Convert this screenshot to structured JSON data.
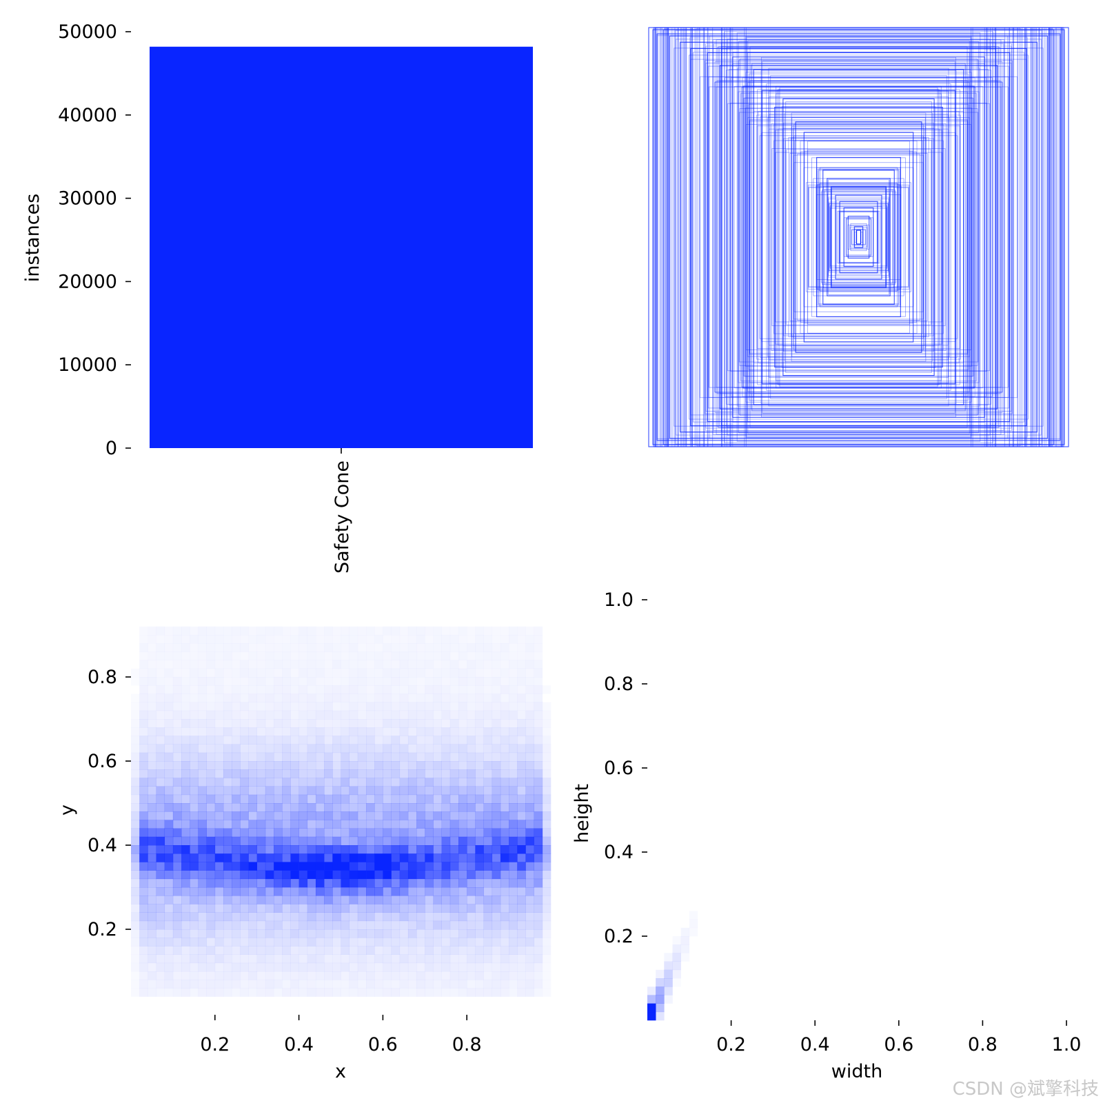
{
  "chart_data": [
    {
      "id": "instances",
      "type": "bar",
      "categories": [
        "Safety Cone"
      ],
      "values": [
        48200
      ],
      "ylabel": "instances",
      "ylim": [
        0,
        50000
      ],
      "yticks": [
        0,
        10000,
        20000,
        30000,
        40000,
        50000
      ],
      "ytick_labels": [
        "0",
        "10000",
        "20000",
        "30000",
        "40000",
        "50000"
      ],
      "color": "#0925ff"
    },
    {
      "id": "box-overlay",
      "type": "scatter",
      "description_colors": {
        "stroke": "#0925ff"
      },
      "boxes_wh": [
        [
          1.0,
          1.0
        ],
        [
          0.98,
          0.99
        ],
        [
          0.96,
          0.97
        ],
        [
          0.93,
          0.99
        ],
        [
          0.9,
          0.96
        ],
        [
          0.85,
          0.93
        ],
        [
          0.8,
          0.9
        ],
        [
          0.72,
          0.88
        ],
        [
          0.66,
          0.82
        ],
        [
          0.6,
          0.86
        ],
        [
          0.55,
          0.72
        ],
        [
          0.5,
          0.8
        ],
        [
          0.46,
          0.7
        ],
        [
          0.4,
          0.62
        ],
        [
          0.36,
          0.66
        ],
        [
          0.3,
          0.55
        ],
        [
          0.26,
          0.5
        ],
        [
          0.2,
          0.38
        ],
        [
          0.17,
          0.32
        ],
        [
          0.15,
          0.28
        ],
        [
          0.13,
          0.24
        ],
        [
          0.11,
          0.2
        ],
        [
          0.09,
          0.17
        ],
        [
          0.07,
          0.14
        ],
        [
          0.05,
          0.1
        ],
        [
          0.02,
          0.05
        ]
      ]
    },
    {
      "id": "xy-density",
      "type": "heatmap",
      "xlabel": "x",
      "ylabel": "y",
      "xlim": [
        0,
        1
      ],
      "ylim": [
        0,
        1
      ],
      "xticks": [
        0.2,
        0.4,
        0.6,
        0.8
      ],
      "xtick_labels": [
        "0.2",
        "0.4",
        "0.6",
        "0.8"
      ],
      "yticks": [
        0.2,
        0.4,
        0.6,
        0.8
      ],
      "ytick_labels": [
        "0.2",
        "0.4",
        "0.6",
        "0.8"
      ],
      "peak": {
        "x": 0.5,
        "y": 0.35
      },
      "band_y": 0.36,
      "color": "#0925ff"
    },
    {
      "id": "wh-density",
      "type": "heatmap",
      "xlabel": "width",
      "ylabel": "height",
      "xlim": [
        0,
        1
      ],
      "ylim": [
        0,
        1
      ],
      "xticks": [
        0.2,
        0.4,
        0.6,
        0.8,
        1.0
      ],
      "xtick_labels": [
        "0.2",
        "0.4",
        "0.6",
        "0.8",
        "1.0"
      ],
      "yticks": [
        0.2,
        0.4,
        0.6,
        0.8,
        1.0
      ],
      "ytick_labels": [
        "0.2",
        "0.4",
        "0.6",
        "0.8",
        "1.0"
      ],
      "peak": {
        "x": 0.01,
        "y": 0.02
      },
      "color": "#0925ff"
    }
  ],
  "watermark": "CSDN @斌擎科技"
}
